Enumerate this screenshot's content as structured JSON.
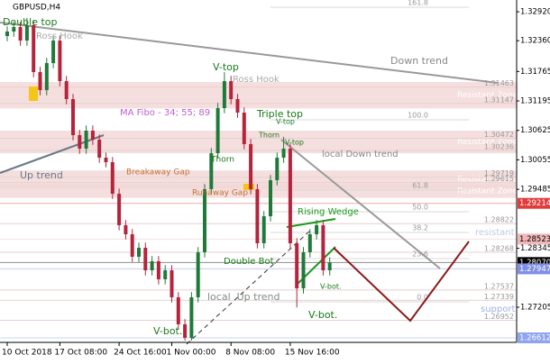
{
  "chart_data": {
    "type": "candlestick",
    "title": "GBPUSD,H4",
    "ylim": [
      1.26525,
      1.33147
    ],
    "yticks": [
      {
        "value": 1.3292,
        "label": "1.32920"
      },
      {
        "value": 1.3236,
        "label": "1.32360"
      },
      {
        "value": 1.31765,
        "label": "1.31765"
      },
      {
        "value": 1.31195,
        "label": "1.31195"
      },
      {
        "value": 1.30625,
        "label": "1.30625"
      },
      {
        "value": 1.30055,
        "label": "1.30055"
      },
      {
        "value": 1.29485,
        "label": "1.29485"
      },
      {
        "value": 1.28345,
        "label": "1.28345"
      },
      {
        "value": 1.27205,
        "label": "1.27205"
      }
    ],
    "axis_markers": [
      {
        "value": 1.29214,
        "label": "1.29214",
        "color": "#e23b3b"
      },
      {
        "value": 1.28523,
        "label": "1.28523",
        "color": "#f2b8b8"
      },
      {
        "value": 1.2807,
        "label": "1.28070",
        "color": "#000000"
      },
      {
        "value": 1.27947,
        "label": "1.27947",
        "color": "#7f8fe6"
      },
      {
        "value": 1.26612,
        "label": "1.26612",
        "color": "#8ea4ee"
      }
    ],
    "levels": [
      {
        "value": 1.31463,
        "label": "1.31463"
      },
      {
        "value": 1.31147,
        "label": "1.31147"
      },
      {
        "value": 1.30472,
        "label": "1.30472"
      },
      {
        "value": 1.30236,
        "label": "1.30236"
      },
      {
        "value": 1.29719,
        "label": "1.29719"
      },
      {
        "value": 1.29615,
        "label": "1.29615"
      },
      {
        "value": 1.28822,
        "label": "1.28822"
      },
      {
        "value": 1.28268,
        "label": "1.28268"
      },
      {
        "value": 1.27537,
        "label": "1.27537"
      },
      {
        "value": 1.27339,
        "label": "1.27339"
      },
      {
        "value": 1.26952,
        "label": "1.26952"
      }
    ],
    "zones": [
      {
        "label": "Resistant Zone",
        "top": 1.3156,
        "bottom": 1.3105
      },
      {
        "label": "Resistant Zone",
        "top": 1.3062,
        "bottom": 1.30184
      },
      {
        "label": "Resistant Zone",
        "top": 1.2985,
        "bottom": 1.295
      },
      {
        "label": "Resistant Zone",
        "top": 1.29578,
        "bottom": 1.2932
      }
    ],
    "fibo": [
      {
        "label": "161.8",
        "price": 1.33007
      },
      {
        "label": "100.0",
        "price": 1.30829
      },
      {
        "label": "61.8",
        "price": 1.2947
      },
      {
        "label": "50.0",
        "price": 1.29052
      },
      {
        "label": "38.2",
        "price": 1.28651
      },
      {
        "label": "23.6",
        "price": 1.28146
      },
      {
        "label": "0.0",
        "price": 1.27309
      }
    ],
    "categories": [
      "10 Oct 2018",
      null,
      null,
      null,
      null,
      null,
      null,
      null,
      "17 Oct 08:00",
      null,
      null,
      null,
      null,
      null,
      null,
      null,
      null,
      "24 Oct 16:00",
      null,
      null,
      null,
      null,
      null,
      null,
      null,
      "1 Nov 00:00",
      null,
      null,
      null,
      null,
      null,
      null,
      null,
      null,
      "8 Nov 08:00",
      null,
      null,
      null,
      null,
      null,
      null,
      null,
      null,
      "15 Nov 16:00",
      null,
      null,
      null,
      null,
      null,
      null
    ],
    "up_color": "#1f7a3a",
    "down_color": "#b5243b",
    "candles": [
      [
        1.3245,
        1.32637,
        1.3235,
        1.32537
      ],
      [
        1.32537,
        1.32724,
        1.32437,
        1.32624
      ],
      [
        1.32624,
        1.32724,
        1.32262,
        1.32362
      ],
      [
        1.32362,
        1.328,
        1.32262,
        1.32659
      ],
      [
        1.32659,
        1.32759,
        1.31653,
        1.31753
      ],
      [
        1.31753,
        1.31853,
        1.31304,
        1.31404
      ],
      [
        1.31404,
        1.32027,
        1.31304,
        1.31927
      ],
      [
        1.31927,
        1.32462,
        1.31827,
        1.32362
      ],
      [
        1.32362,
        1.32462,
        1.31478,
        1.31578
      ],
      [
        1.31578,
        1.31678,
        1.3113,
        1.3123
      ],
      [
        1.3123,
        1.3133,
        1.30433,
        1.30533
      ],
      [
        1.30533,
        1.30633,
        1.30172,
        1.30272
      ],
      [
        1.30272,
        1.3072,
        1.30172,
        1.3062
      ],
      [
        1.3062,
        1.3072,
        1.30346,
        1.30446
      ],
      [
        1.30446,
        1.30546,
        1.29997,
        1.30097
      ],
      [
        1.30097,
        1.30197,
        1.2991,
        1.3001
      ],
      [
        1.3001,
        1.3011,
        1.293,
        1.294
      ],
      [
        1.294,
        1.295,
        1.28691,
        1.28791
      ],
      [
        1.28791,
        1.28891,
        1.28516,
        1.28616
      ],
      [
        1.28616,
        1.28716,
        1.28081,
        1.28181
      ],
      [
        1.28181,
        1.28455,
        1.28081,
        1.28355
      ],
      [
        1.28355,
        1.28455,
        1.27819,
        1.27919
      ],
      [
        1.27919,
        1.28194,
        1.27819,
        1.28094
      ],
      [
        1.28094,
        1.28194,
        1.27645,
        1.27745
      ],
      [
        1.27745,
        1.28019,
        1.27645,
        1.27919
      ],
      [
        1.27919,
        1.28019,
        1.27297,
        1.27397
      ],
      [
        1.27397,
        1.27497,
        1.26774,
        1.26874
      ],
      [
        1.26874,
        1.26974,
        1.2656,
        1.26613
      ],
      [
        1.26613,
        1.27497,
        1.2656,
        1.27397
      ],
      [
        1.27397,
        1.28368,
        1.27297,
        1.28268
      ],
      [
        1.28268,
        1.29588,
        1.28168,
        1.29488
      ],
      [
        1.29488,
        1.30284,
        1.29388,
        1.30184
      ],
      [
        1.30184,
        1.31156,
        1.30084,
        1.31056
      ],
      [
        1.31056,
        1.3175,
        1.30956,
        1.31578
      ],
      [
        1.31578,
        1.31678,
        1.3113,
        1.3123
      ],
      [
        1.3123,
        1.3133,
        1.30869,
        1.30969
      ],
      [
        1.30969,
        1.31069,
        1.30259,
        1.30359
      ],
      [
        1.30359,
        1.30459,
        1.29388,
        1.29488
      ],
      [
        1.29488,
        1.29588,
        1.28342,
        1.28442
      ],
      [
        1.28442,
        1.29065,
        1.28342,
        1.28965
      ],
      [
        1.28965,
        1.29762,
        1.28865,
        1.29662
      ],
      [
        1.29662,
        1.30197,
        1.29562,
        1.30097
      ],
      [
        1.30097,
        1.305,
        1.29997,
        1.30272
      ],
      [
        1.30272,
        1.30372,
        1.28342,
        1.28442
      ],
      [
        1.28442,
        1.28542,
        1.272,
        1.27571
      ],
      [
        1.27571,
        1.28368,
        1.27471,
        1.28268
      ],
      [
        1.28268,
        1.28716,
        1.28168,
        1.28616
      ],
      [
        1.28616,
        1.28891,
        1.28516,
        1.28791
      ],
      [
        1.28791,
        1.28891,
        1.27819,
        1.27919
      ],
      [
        1.27919,
        1.2817,
        1.27819,
        1.2807
      ]
    ],
    "annotations": [
      "GBPUSD,H4",
      "Double top",
      "Ross Hook",
      "Ross Hook",
      "Down trend",
      "V-top",
      "MA Fibo - 34; 55; 89",
      "Triple top",
      "V-top",
      "V-top",
      "Thorn",
      "Thorn",
      "local Down trend",
      "Up trend",
      "Breakaway Gap",
      "Runaway Gap",
      "Rising Wedge",
      "Double Bot.",
      "V-bot.",
      "local  Up trend",
      "V-bot.",
      "V-bot.",
      "resistant",
      "support"
    ]
  }
}
